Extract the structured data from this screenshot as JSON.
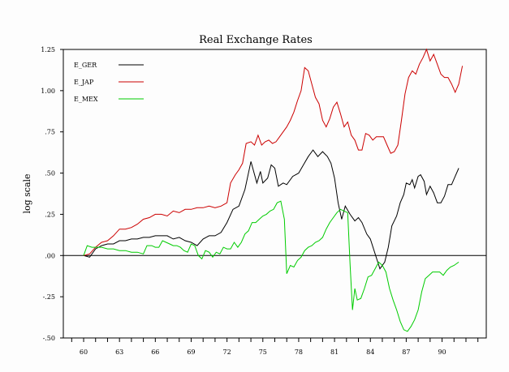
{
  "chart_data": {
    "type": "line",
    "title": "Real Exchange Rates",
    "ylabel": "log scale",
    "xlabel": "",
    "ylim": [
      -0.5,
      1.25
    ],
    "xlim": [
      1958.3,
      1993.7
    ],
    "yticks": [
      {
        "v": 1.25,
        "label": "1.25"
      },
      {
        "v": 1.0,
        "label": "1.00"
      },
      {
        "v": 0.75,
        "label": ".75"
      },
      {
        "v": 0.5,
        "label": ".50"
      },
      {
        "v": 0.25,
        "label": ".25"
      },
      {
        "v": 0.0,
        "label": ".00"
      },
      {
        "v": -0.25,
        "label": "-.25"
      },
      {
        "v": -0.5,
        "label": "-.50"
      }
    ],
    "xticks": [
      {
        "v": 1960,
        "label": "60"
      },
      {
        "v": 1963,
        "label": "63"
      },
      {
        "v": 1966,
        "label": "66"
      },
      {
        "v": 1969,
        "label": "69"
      },
      {
        "v": 1972,
        "label": "72"
      },
      {
        "v": 1975,
        "label": "75"
      },
      {
        "v": 1978,
        "label": "78"
      },
      {
        "v": 1981,
        "label": "81"
      },
      {
        "v": 1984,
        "label": "84"
      },
      {
        "v": 1987,
        "label": "87"
      },
      {
        "v": 1990,
        "label": "90"
      }
    ],
    "grid": false,
    "legend": "top-left",
    "series": [
      {
        "name": "E_GER",
        "color": "#000000",
        "points": [
          [
            1960.0,
            0.0
          ],
          [
            1960.5,
            -0.01
          ],
          [
            1961.0,
            0.04
          ],
          [
            1961.5,
            0.06
          ],
          [
            1962.0,
            0.07
          ],
          [
            1962.5,
            0.07
          ],
          [
            1963.0,
            0.09
          ],
          [
            1963.5,
            0.09
          ],
          [
            1964.0,
            0.1
          ],
          [
            1964.5,
            0.1
          ],
          [
            1965.0,
            0.11
          ],
          [
            1965.5,
            0.11
          ],
          [
            1966.0,
            0.12
          ],
          [
            1966.5,
            0.12
          ],
          [
            1967.0,
            0.12
          ],
          [
            1967.5,
            0.1
          ],
          [
            1968.0,
            0.11
          ],
          [
            1968.5,
            0.09
          ],
          [
            1969.0,
            0.08
          ],
          [
            1969.5,
            0.06
          ],
          [
            1970.0,
            0.1
          ],
          [
            1970.5,
            0.12
          ],
          [
            1971.0,
            0.12
          ],
          [
            1971.5,
            0.14
          ],
          [
            1972.0,
            0.2
          ],
          [
            1972.5,
            0.28
          ],
          [
            1973.0,
            0.3
          ],
          [
            1973.5,
            0.4
          ],
          [
            1974.0,
            0.57
          ],
          [
            1974.5,
            0.44
          ],
          [
            1974.8,
            0.51
          ],
          [
            1975.0,
            0.44
          ],
          [
            1975.4,
            0.47
          ],
          [
            1975.7,
            0.55
          ],
          [
            1976.0,
            0.53
          ],
          [
            1976.3,
            0.42
          ],
          [
            1976.7,
            0.44
          ],
          [
            1977.0,
            0.43
          ],
          [
            1977.5,
            0.48
          ],
          [
            1978.0,
            0.5
          ],
          [
            1978.4,
            0.55
          ],
          [
            1978.8,
            0.6
          ],
          [
            1979.2,
            0.64
          ],
          [
            1979.6,
            0.6
          ],
          [
            1980.0,
            0.63
          ],
          [
            1980.4,
            0.6
          ],
          [
            1980.7,
            0.56
          ],
          [
            1981.0,
            0.47
          ],
          [
            1981.3,
            0.32
          ],
          [
            1981.6,
            0.22
          ],
          [
            1981.9,
            0.3
          ],
          [
            1982.3,
            0.25
          ],
          [
            1982.7,
            0.21
          ],
          [
            1983.0,
            0.23
          ],
          [
            1983.3,
            0.2
          ],
          [
            1983.7,
            0.13
          ],
          [
            1984.0,
            0.1
          ],
          [
            1984.4,
            0.01
          ],
          [
            1984.8,
            -0.08
          ],
          [
            1985.2,
            -0.04
          ],
          [
            1985.5,
            0.05
          ],
          [
            1985.8,
            0.18
          ],
          [
            1986.2,
            0.24
          ],
          [
            1986.5,
            0.32
          ],
          [
            1986.8,
            0.37
          ],
          [
            1987.0,
            0.44
          ],
          [
            1987.3,
            0.43
          ],
          [
            1987.5,
            0.46
          ],
          [
            1987.7,
            0.41
          ],
          [
            1988.0,
            0.48
          ],
          [
            1988.2,
            0.49
          ],
          [
            1988.5,
            0.45
          ],
          [
            1988.7,
            0.37
          ],
          [
            1989.0,
            0.42
          ],
          [
            1989.3,
            0.38
          ],
          [
            1989.6,
            0.32
          ],
          [
            1989.9,
            0.32
          ],
          [
            1990.2,
            0.36
          ],
          [
            1990.5,
            0.43
          ],
          [
            1990.8,
            0.43
          ],
          [
            1991.1,
            0.48
          ],
          [
            1991.4,
            0.53
          ]
        ]
      },
      {
        "name": "E_JAP",
        "color": "#cc0000",
        "points": [
          [
            1960.0,
            0.0
          ],
          [
            1960.5,
            0.01
          ],
          [
            1961.0,
            0.05
          ],
          [
            1961.5,
            0.08
          ],
          [
            1962.0,
            0.09
          ],
          [
            1962.5,
            0.12
          ],
          [
            1963.0,
            0.16
          ],
          [
            1963.5,
            0.16
          ],
          [
            1964.0,
            0.17
          ],
          [
            1964.5,
            0.19
          ],
          [
            1965.0,
            0.22
          ],
          [
            1965.5,
            0.23
          ],
          [
            1966.0,
            0.25
          ],
          [
            1966.5,
            0.25
          ],
          [
            1967.0,
            0.24
          ],
          [
            1967.5,
            0.27
          ],
          [
            1968.0,
            0.26
          ],
          [
            1968.5,
            0.28
          ],
          [
            1969.0,
            0.28
          ],
          [
            1969.5,
            0.29
          ],
          [
            1970.0,
            0.29
          ],
          [
            1970.5,
            0.3
          ],
          [
            1971.0,
            0.29
          ],
          [
            1971.5,
            0.3
          ],
          [
            1972.0,
            0.32
          ],
          [
            1972.3,
            0.44
          ],
          [
            1972.7,
            0.49
          ],
          [
            1973.0,
            0.52
          ],
          [
            1973.3,
            0.56
          ],
          [
            1973.6,
            0.68
          ],
          [
            1974.0,
            0.69
          ],
          [
            1974.3,
            0.67
          ],
          [
            1974.6,
            0.73
          ],
          [
            1974.9,
            0.67
          ],
          [
            1975.2,
            0.69
          ],
          [
            1975.5,
            0.7
          ],
          [
            1975.8,
            0.68
          ],
          [
            1976.1,
            0.69
          ],
          [
            1976.4,
            0.72
          ],
          [
            1976.7,
            0.75
          ],
          [
            1977.0,
            0.78
          ],
          [
            1977.3,
            0.82
          ],
          [
            1977.6,
            0.87
          ],
          [
            1977.9,
            0.94
          ],
          [
            1978.2,
            1.0
          ],
          [
            1978.5,
            1.14
          ],
          [
            1978.8,
            1.12
          ],
          [
            1979.1,
            1.04
          ],
          [
            1979.4,
            0.96
          ],
          [
            1979.7,
            0.92
          ],
          [
            1980.0,
            0.82
          ],
          [
            1980.3,
            0.78
          ],
          [
            1980.6,
            0.83
          ],
          [
            1980.9,
            0.9
          ],
          [
            1981.2,
            0.93
          ],
          [
            1981.5,
            0.86
          ],
          [
            1981.8,
            0.78
          ],
          [
            1982.1,
            0.81
          ],
          [
            1982.4,
            0.73
          ],
          [
            1982.7,
            0.7
          ],
          [
            1983.0,
            0.64
          ],
          [
            1983.3,
            0.64
          ],
          [
            1983.6,
            0.74
          ],
          [
            1983.9,
            0.73
          ],
          [
            1984.2,
            0.7
          ],
          [
            1984.5,
            0.72
          ],
          [
            1984.8,
            0.72
          ],
          [
            1985.1,
            0.72
          ],
          [
            1985.4,
            0.67
          ],
          [
            1985.7,
            0.62
          ],
          [
            1986.0,
            0.63
          ],
          [
            1986.3,
            0.67
          ],
          [
            1986.6,
            0.82
          ],
          [
            1986.9,
            0.98
          ],
          [
            1987.2,
            1.08
          ],
          [
            1987.5,
            1.12
          ],
          [
            1987.8,
            1.1
          ],
          [
            1988.1,
            1.16
          ],
          [
            1988.4,
            1.2
          ],
          [
            1988.7,
            1.25
          ],
          [
            1989.0,
            1.18
          ],
          [
            1989.3,
            1.22
          ],
          [
            1989.6,
            1.16
          ],
          [
            1989.9,
            1.1
          ],
          [
            1990.2,
            1.08
          ],
          [
            1990.5,
            1.08
          ],
          [
            1990.8,
            1.04
          ],
          [
            1991.1,
            0.99
          ],
          [
            1991.4,
            1.04
          ],
          [
            1991.7,
            1.15
          ]
        ]
      },
      {
        "name": "E_MEX",
        "color": "#00cc00",
        "points": [
          [
            1960.0,
            0.0
          ],
          [
            1960.3,
            0.06
          ],
          [
            1960.7,
            0.05
          ],
          [
            1961.0,
            0.05
          ],
          [
            1961.5,
            0.05
          ],
          [
            1962.0,
            0.04
          ],
          [
            1962.5,
            0.04
          ],
          [
            1963.0,
            0.03
          ],
          [
            1963.5,
            0.03
          ],
          [
            1964.0,
            0.02
          ],
          [
            1964.5,
            0.02
          ],
          [
            1965.0,
            0.01
          ],
          [
            1965.3,
            0.06
          ],
          [
            1965.7,
            0.06
          ],
          [
            1966.0,
            0.05
          ],
          [
            1966.3,
            0.05
          ],
          [
            1966.6,
            0.09
          ],
          [
            1966.9,
            0.08
          ],
          [
            1967.2,
            0.07
          ],
          [
            1967.5,
            0.06
          ],
          [
            1967.8,
            0.06
          ],
          [
            1968.1,
            0.05
          ],
          [
            1968.4,
            0.03
          ],
          [
            1968.7,
            0.02
          ],
          [
            1969.0,
            0.07
          ],
          [
            1969.3,
            0.06
          ],
          [
            1969.6,
            0.0
          ],
          [
            1969.9,
            -0.02
          ],
          [
            1970.2,
            0.03
          ],
          [
            1970.5,
            0.02
          ],
          [
            1970.8,
            -0.01
          ],
          [
            1971.1,
            0.02
          ],
          [
            1971.4,
            0.01
          ],
          [
            1971.7,
            0.05
          ],
          [
            1972.0,
            0.04
          ],
          [
            1972.3,
            0.04
          ],
          [
            1972.6,
            0.08
          ],
          [
            1972.9,
            0.05
          ],
          [
            1973.2,
            0.08
          ],
          [
            1973.5,
            0.13
          ],
          [
            1973.8,
            0.15
          ],
          [
            1974.1,
            0.2
          ],
          [
            1974.4,
            0.2
          ],
          [
            1974.7,
            0.22
          ],
          [
            1975.0,
            0.24
          ],
          [
            1975.3,
            0.25
          ],
          [
            1975.6,
            0.27
          ],
          [
            1975.9,
            0.28
          ],
          [
            1976.2,
            0.32
          ],
          [
            1976.5,
            0.33
          ],
          [
            1976.8,
            0.22
          ],
          [
            1977.0,
            -0.11
          ],
          [
            1977.3,
            -0.06
          ],
          [
            1977.6,
            -0.07
          ],
          [
            1977.9,
            -0.03
          ],
          [
            1978.2,
            -0.01
          ],
          [
            1978.5,
            0.03
          ],
          [
            1978.8,
            0.05
          ],
          [
            1979.1,
            0.06
          ],
          [
            1979.4,
            0.08
          ],
          [
            1979.7,
            0.09
          ],
          [
            1980.0,
            0.11
          ],
          [
            1980.3,
            0.16
          ],
          [
            1980.6,
            0.2
          ],
          [
            1980.9,
            0.23
          ],
          [
            1981.2,
            0.26
          ],
          [
            1981.5,
            0.28
          ],
          [
            1981.8,
            0.27
          ],
          [
            1982.1,
            0.26
          ],
          [
            1982.3,
            -0.05
          ],
          [
            1982.5,
            -0.33
          ],
          [
            1982.7,
            -0.2
          ],
          [
            1982.9,
            -0.27
          ],
          [
            1983.2,
            -0.26
          ],
          [
            1983.5,
            -0.2
          ],
          [
            1983.8,
            -0.13
          ],
          [
            1984.1,
            -0.12
          ],
          [
            1984.4,
            -0.08
          ],
          [
            1984.7,
            -0.04
          ],
          [
            1985.0,
            -0.06
          ],
          [
            1985.3,
            -0.1
          ],
          [
            1985.6,
            -0.2
          ],
          [
            1985.9,
            -0.27
          ],
          [
            1986.2,
            -0.33
          ],
          [
            1986.5,
            -0.4
          ],
          [
            1986.8,
            -0.45
          ],
          [
            1987.1,
            -0.46
          ],
          [
            1987.4,
            -0.43
          ],
          [
            1987.7,
            -0.39
          ],
          [
            1988.0,
            -0.33
          ],
          [
            1988.3,
            -0.22
          ],
          [
            1988.6,
            -0.14
          ],
          [
            1988.9,
            -0.12
          ],
          [
            1989.2,
            -0.1
          ],
          [
            1989.5,
            -0.1
          ],
          [
            1989.8,
            -0.1
          ],
          [
            1990.1,
            -0.12
          ],
          [
            1990.4,
            -0.09
          ],
          [
            1990.7,
            -0.07
          ],
          [
            1991.0,
            -0.06
          ],
          [
            1991.4,
            -0.04
          ]
        ]
      }
    ]
  }
}
